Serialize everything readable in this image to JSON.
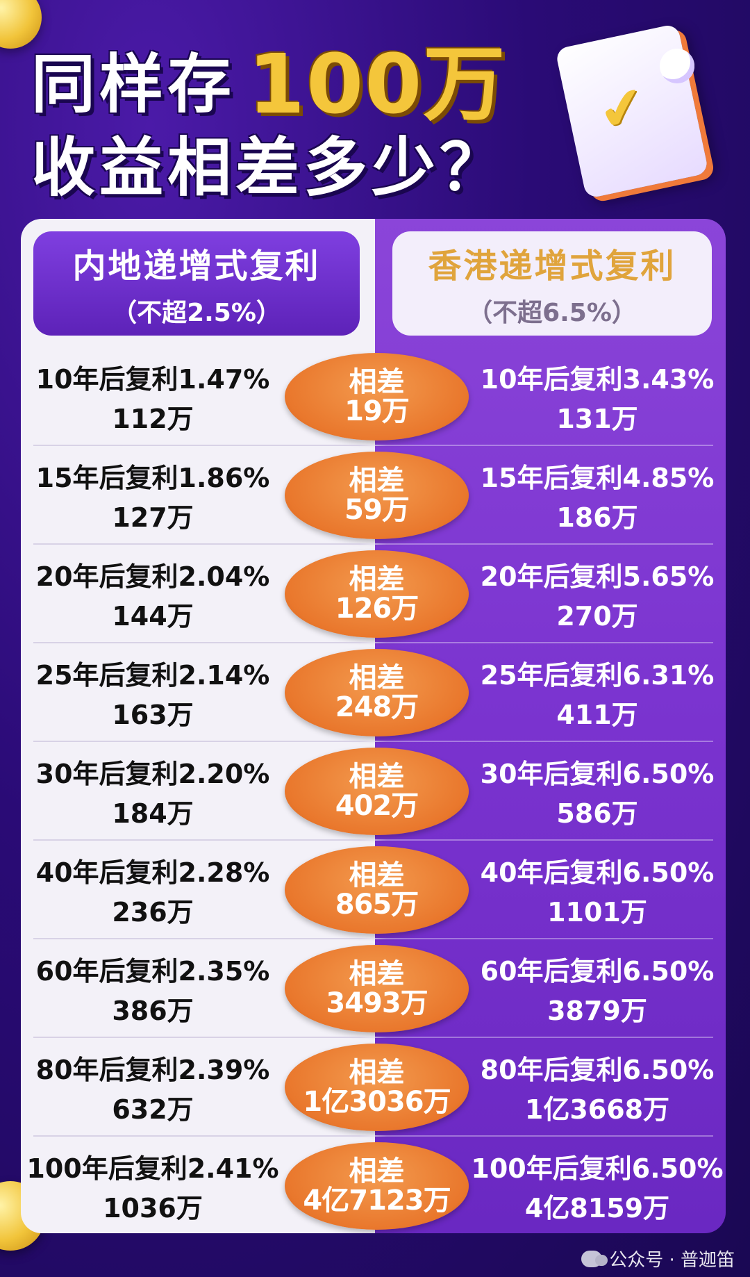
{
  "title": {
    "line1_prefix": "同样存",
    "line1_highlight": "100万",
    "line2": "收益相差多少？"
  },
  "icons": {
    "document": "checked-document-icon",
    "coin": "gold-coin-icon",
    "watermark": "wechat-icon"
  },
  "colors": {
    "highlight": "#f4c63b",
    "oval": "#e9772c",
    "left_panel": "#f3f1f8",
    "right_panel": "#7a33cf"
  },
  "headers": {
    "left": {
      "title": "内地递增式复利",
      "subtitle": "（不超2.5%）"
    },
    "right": {
      "title": "香港递增式复利",
      "subtitle": "（不超6.5%）"
    }
  },
  "rows": [
    {
      "left_rate": "10年后复利1.47%",
      "left_amount": "112万",
      "diff_label": "相差",
      "diff_value": "19万",
      "right_rate": "10年后复利3.43%",
      "right_amount": "131万"
    },
    {
      "left_rate": "15年后复利1.86%",
      "left_amount": "127万",
      "diff_label": "相差",
      "diff_value": "59万",
      "right_rate": "15年后复利4.85%",
      "right_amount": "186万"
    },
    {
      "left_rate": "20年后复利2.04%",
      "left_amount": "144万",
      "diff_label": "相差",
      "diff_value": "126万",
      "right_rate": "20年后复利5.65%",
      "right_amount": "270万"
    },
    {
      "left_rate": "25年后复利2.14%",
      "left_amount": "163万",
      "diff_label": "相差",
      "diff_value": "248万",
      "right_rate": "25年后复利6.31%",
      "right_amount": "411万"
    },
    {
      "left_rate": "30年后复利2.20%",
      "left_amount": "184万",
      "diff_label": "相差",
      "diff_value": "402万",
      "right_rate": "30年后复利6.50%",
      "right_amount": "586万"
    },
    {
      "left_rate": "40年后复利2.28%",
      "left_amount": "236万",
      "diff_label": "相差",
      "diff_value": "865万",
      "right_rate": "40年后复利6.50%",
      "right_amount": "1101万"
    },
    {
      "left_rate": "60年后复利2.35%",
      "left_amount": "386万",
      "diff_label": "相差",
      "diff_value": "3493万",
      "right_rate": "60年后复利6.50%",
      "right_amount": "3879万"
    },
    {
      "left_rate": "80年后复利2.39%",
      "left_amount": "632万",
      "diff_label": "相差",
      "diff_value": "1亿3036万",
      "right_rate": "80年后复利6.50%",
      "right_amount": "1亿3668万"
    },
    {
      "left_rate": "100年后复利2.41%",
      "left_amount": "1036万",
      "diff_label": "相差",
      "diff_value": "4亿7123万",
      "right_rate": "100年后复利6.50%",
      "right_amount": "4亿8159万"
    }
  ],
  "watermark": {
    "text": "公众号 · 普迦笛"
  }
}
